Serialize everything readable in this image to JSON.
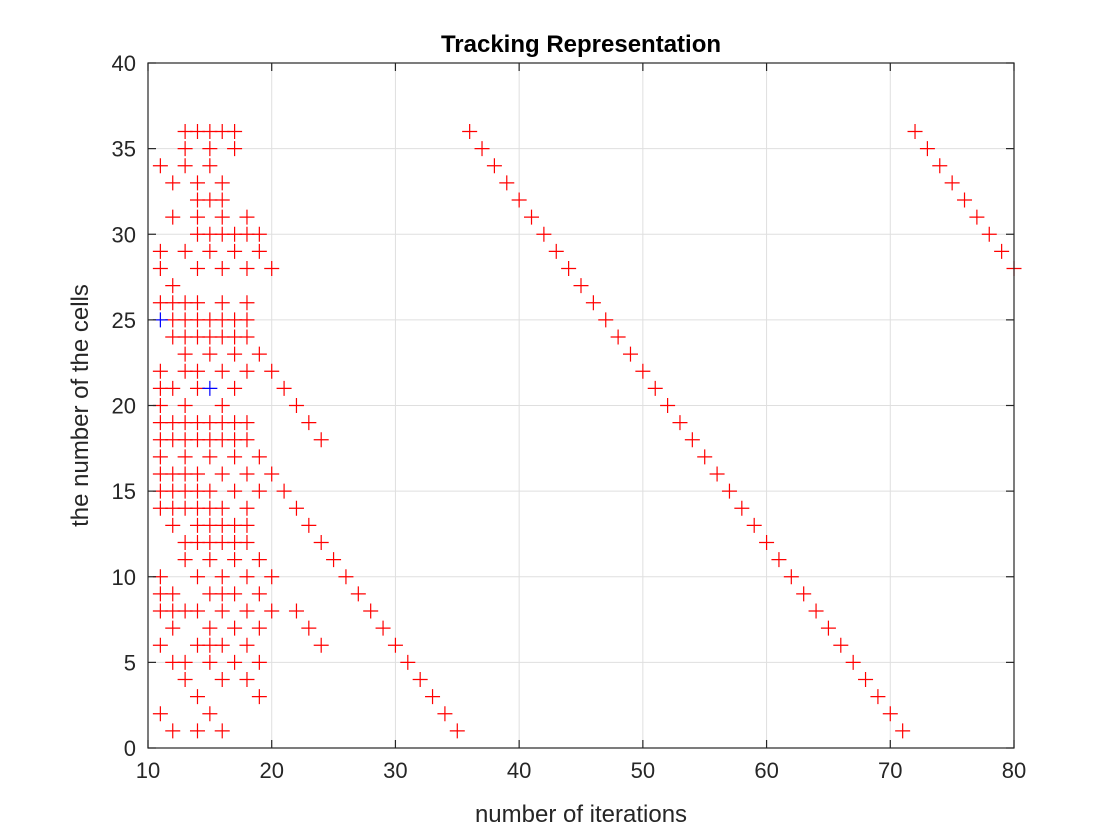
{
  "chart_data": {
    "type": "scatter",
    "title": "Tracking Representation",
    "xlabel": "number of iterations",
    "ylabel": "the number of the cells",
    "xlim": [
      10,
      80
    ],
    "ylim": [
      0,
      40
    ],
    "xticks": [
      10,
      20,
      30,
      40,
      50,
      60,
      70,
      80
    ],
    "yticks": [
      0,
      5,
      10,
      15,
      20,
      25,
      30,
      35,
      40
    ],
    "grid": true,
    "marker": "+",
    "series": [
      {
        "color": "#ff0000",
        "points": [
          [
            13,
            36
          ],
          [
            14,
            36
          ],
          [
            15,
            36
          ],
          [
            16,
            36
          ],
          [
            17,
            36
          ],
          [
            11,
            34
          ],
          [
            13,
            35
          ],
          [
            15,
            35
          ],
          [
            17,
            35
          ],
          [
            13,
            34
          ],
          [
            15,
            34
          ],
          [
            12,
            33
          ],
          [
            14,
            33
          ],
          [
            16,
            33
          ],
          [
            14,
            32
          ],
          [
            15,
            32
          ],
          [
            16,
            32
          ],
          [
            12,
            31
          ],
          [
            14,
            31
          ],
          [
            16,
            31
          ],
          [
            18,
            31
          ],
          [
            14,
            30
          ],
          [
            15,
            30
          ],
          [
            16,
            30
          ],
          [
            17,
            30
          ],
          [
            18,
            30
          ],
          [
            19,
            30
          ],
          [
            11,
            29
          ],
          [
            13,
            29
          ],
          [
            15,
            29
          ],
          [
            17,
            29
          ],
          [
            19,
            29
          ],
          [
            11,
            28
          ],
          [
            14,
            28
          ],
          [
            16,
            28
          ],
          [
            18,
            28
          ],
          [
            20,
            28
          ],
          [
            12,
            27
          ],
          [
            11,
            26
          ],
          [
            12,
            26
          ],
          [
            13,
            26
          ],
          [
            14,
            26
          ],
          [
            16,
            26
          ],
          [
            18,
            26
          ],
          [
            12,
            25
          ],
          [
            13,
            25
          ],
          [
            14,
            25
          ],
          [
            15,
            25
          ],
          [
            16,
            25
          ],
          [
            17,
            25
          ],
          [
            18,
            25
          ],
          [
            12,
            24
          ],
          [
            13,
            24
          ],
          [
            14,
            24
          ],
          [
            15,
            24
          ],
          [
            16,
            24
          ],
          [
            17,
            24
          ],
          [
            18,
            24
          ],
          [
            13,
            23
          ],
          [
            15,
            23
          ],
          [
            17,
            23
          ],
          [
            19,
            23
          ],
          [
            11,
            22
          ],
          [
            13,
            22
          ],
          [
            14,
            22
          ],
          [
            16,
            22
          ],
          [
            18,
            22
          ],
          [
            20,
            22
          ],
          [
            11,
            21
          ],
          [
            12,
            21
          ],
          [
            14,
            21
          ],
          [
            17,
            21
          ],
          [
            21,
            21
          ],
          [
            11,
            20
          ],
          [
            13,
            20
          ],
          [
            16,
            20
          ],
          [
            22,
            20
          ],
          [
            11,
            19
          ],
          [
            12,
            19
          ],
          [
            13,
            19
          ],
          [
            14,
            19
          ],
          [
            15,
            19
          ],
          [
            16,
            19
          ],
          [
            17,
            19
          ],
          [
            18,
            19
          ],
          [
            23,
            19
          ],
          [
            11,
            18
          ],
          [
            12,
            18
          ],
          [
            13,
            18
          ],
          [
            14,
            18
          ],
          [
            15,
            18
          ],
          [
            16,
            18
          ],
          [
            17,
            18
          ],
          [
            18,
            18
          ],
          [
            24,
            18
          ],
          [
            11,
            17
          ],
          [
            13,
            17
          ],
          [
            15,
            17
          ],
          [
            17,
            17
          ],
          [
            19,
            17
          ],
          [
            11,
            16
          ],
          [
            12,
            16
          ],
          [
            13,
            16
          ],
          [
            14,
            16
          ],
          [
            16,
            16
          ],
          [
            18,
            16
          ],
          [
            20,
            16
          ],
          [
            11,
            15
          ],
          [
            12,
            15
          ],
          [
            13,
            15
          ],
          [
            14,
            15
          ],
          [
            15,
            15
          ],
          [
            17,
            15
          ],
          [
            19,
            15
          ],
          [
            21,
            15
          ],
          [
            11,
            14
          ],
          [
            12,
            14
          ],
          [
            13,
            14
          ],
          [
            14,
            14
          ],
          [
            15,
            14
          ],
          [
            16,
            14
          ],
          [
            18,
            14
          ],
          [
            22,
            14
          ],
          [
            14,
            13
          ],
          [
            15,
            13
          ],
          [
            16,
            13
          ],
          [
            17,
            13
          ],
          [
            18,
            13
          ],
          [
            12,
            13
          ],
          [
            23,
            13
          ],
          [
            13,
            12
          ],
          [
            14,
            12
          ],
          [
            15,
            12
          ],
          [
            16,
            12
          ],
          [
            17,
            12
          ],
          [
            18,
            12
          ],
          [
            24,
            12
          ],
          [
            13,
            11
          ],
          [
            15,
            11
          ],
          [
            17,
            11
          ],
          [
            19,
            11
          ],
          [
            25,
            11
          ],
          [
            11,
            10
          ],
          [
            14,
            10
          ],
          [
            16,
            10
          ],
          [
            18,
            10
          ],
          [
            20,
            10
          ],
          [
            26,
            10
          ],
          [
            11,
            9
          ],
          [
            12,
            9
          ],
          [
            15,
            9
          ],
          [
            16,
            9
          ],
          [
            17,
            9
          ],
          [
            19,
            9
          ],
          [
            27,
            9
          ],
          [
            11,
            8
          ],
          [
            12,
            8
          ],
          [
            13,
            8
          ],
          [
            14,
            8
          ],
          [
            16,
            8
          ],
          [
            18,
            8
          ],
          [
            20,
            8
          ],
          [
            22,
            8
          ],
          [
            28,
            8
          ],
          [
            12,
            7
          ],
          [
            15,
            7
          ],
          [
            17,
            7
          ],
          [
            19,
            7
          ],
          [
            23,
            7
          ],
          [
            29,
            7
          ],
          [
            11,
            6
          ],
          [
            14,
            6
          ],
          [
            15,
            6
          ],
          [
            16,
            6
          ],
          [
            18,
            6
          ],
          [
            24,
            6
          ],
          [
            30,
            6
          ],
          [
            12,
            5
          ],
          [
            13,
            5
          ],
          [
            15,
            5
          ],
          [
            17,
            5
          ],
          [
            19,
            5
          ],
          [
            31,
            5
          ],
          [
            13,
            4
          ],
          [
            16,
            4
          ],
          [
            18,
            4
          ],
          [
            32,
            4
          ],
          [
            14,
            3
          ],
          [
            19,
            3
          ],
          [
            33,
            3
          ],
          [
            11,
            2
          ],
          [
            15,
            2
          ],
          [
            34,
            2
          ],
          [
            12,
            1
          ],
          [
            14,
            1
          ],
          [
            16,
            1
          ],
          [
            35,
            1
          ],
          [
            36,
            36
          ],
          [
            37,
            35
          ],
          [
            38,
            34
          ],
          [
            39,
            33
          ],
          [
            40,
            32
          ],
          [
            41,
            31
          ],
          [
            42,
            30
          ],
          [
            43,
            29
          ],
          [
            44,
            28
          ],
          [
            45,
            27
          ],
          [
            46,
            26
          ],
          [
            47,
            25
          ],
          [
            48,
            24
          ],
          [
            49,
            23
          ],
          [
            50,
            22
          ],
          [
            51,
            21
          ],
          [
            52,
            20
          ],
          [
            53,
            19
          ],
          [
            54,
            18
          ],
          [
            55,
            17
          ],
          [
            56,
            16
          ],
          [
            57,
            15
          ],
          [
            58,
            14
          ],
          [
            59,
            13
          ],
          [
            60,
            12
          ],
          [
            61,
            11
          ],
          [
            62,
            10
          ],
          [
            63,
            9
          ],
          [
            64,
            8
          ],
          [
            65,
            7
          ],
          [
            66,
            6
          ],
          [
            67,
            5
          ],
          [
            68,
            4
          ],
          [
            69,
            3
          ],
          [
            70,
            2
          ],
          [
            71,
            1
          ],
          [
            72,
            36
          ],
          [
            73,
            35
          ],
          [
            74,
            34
          ],
          [
            75,
            33
          ],
          [
            76,
            32
          ],
          [
            77,
            31
          ],
          [
            78,
            30
          ],
          [
            79,
            29
          ],
          [
            80,
            28
          ]
        ]
      },
      {
        "color": "#0000ff",
        "points": [
          [
            11,
            25
          ],
          [
            15,
            21
          ]
        ]
      }
    ]
  }
}
